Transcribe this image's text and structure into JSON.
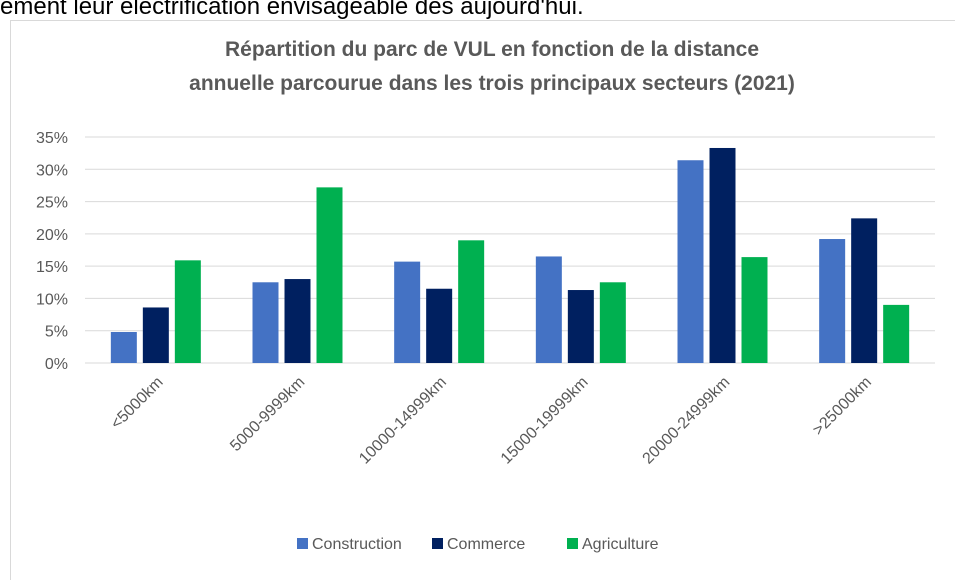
{
  "page_text": "ement leur électrification envisageable dès aujourd'hui.",
  "chart_data": {
    "type": "bar",
    "title": [
      "Répartition du parc de VUL en fonction de la distance",
      "annuelle parcourue dans les trois principaux secteurs (2021)"
    ],
    "categories": [
      "<5000km",
      "5000-9999km",
      "10000-14999km",
      "15000-19999km",
      "20000-24999km",
      ">25000km"
    ],
    "series": [
      {
        "name": "Construction",
        "color": "#4472c4",
        "values": [
          4.8,
          12.5,
          15.7,
          16.5,
          31.4,
          19.2
        ]
      },
      {
        "name": "Commerce",
        "color": "#002060",
        "values": [
          8.6,
          13.0,
          11.5,
          11.3,
          33.3,
          22.4
        ]
      },
      {
        "name": "Agriculture",
        "color": "#00b050",
        "values": [
          15.9,
          27.2,
          19.0,
          12.5,
          16.4,
          9.0
        ]
      }
    ],
    "ylim": [
      0,
      35
    ],
    "yticks": [
      {
        "value": 0,
        "label": "0%"
      },
      {
        "value": 5,
        "label": "5%"
      },
      {
        "value": 10,
        "label": "10%"
      },
      {
        "value": 15,
        "label": "15%"
      },
      {
        "value": 20,
        "label": "20%"
      },
      {
        "value": 25,
        "label": "25%"
      },
      {
        "value": 30,
        "label": "30%"
      },
      {
        "value": 35,
        "label": "35%"
      }
    ],
    "grid": true,
    "legend": "bottom"
  }
}
